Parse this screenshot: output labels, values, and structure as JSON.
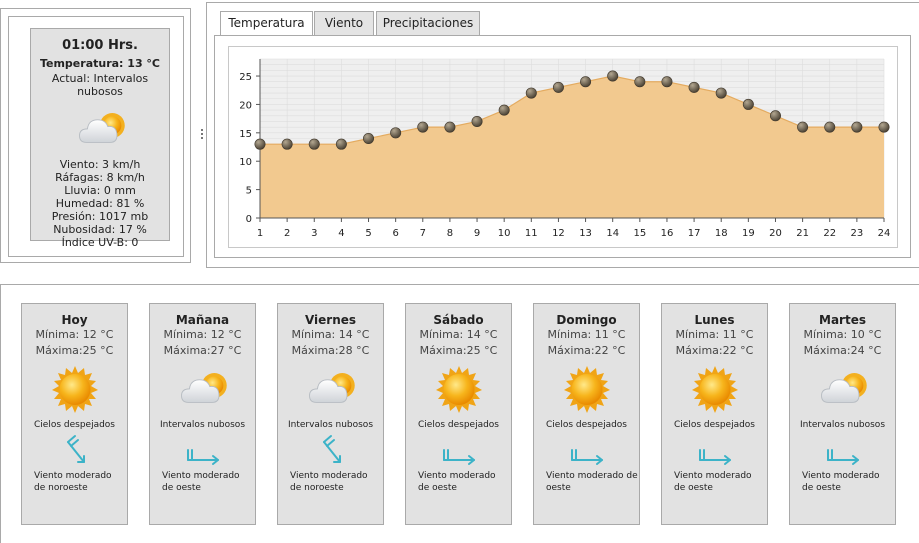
{
  "current": {
    "time": "01:00 Hrs.",
    "temp_label": "Temperatura:",
    "temp_value": "13 °C",
    "actual_label": "Actual:",
    "actual_value": "Intervalos nubosos",
    "icon": "partly-cloudy-icon",
    "details": [
      {
        "label": "Viento:",
        "value": "3 km/h"
      },
      {
        "label": "Ráfagas:",
        "value": "8 km/h"
      },
      {
        "label": "Lluvia:",
        "value": "0 mm"
      },
      {
        "label": "Humedad:",
        "value": "81 %"
      },
      {
        "label": "Presión:",
        "value": "1017 mb"
      },
      {
        "label": "Nubosidad:",
        "value": "17 %"
      },
      {
        "label": "Índice UV-B:",
        "value": "0"
      }
    ]
  },
  "tabs": [
    {
      "label": "Temperatura",
      "active": true
    },
    {
      "label": "Viento",
      "active": false
    },
    {
      "label": "Precipitaciones",
      "active": false
    }
  ],
  "chart_data": {
    "type": "area",
    "x": [
      1,
      2,
      3,
      4,
      5,
      6,
      7,
      8,
      9,
      10,
      11,
      12,
      13,
      14,
      15,
      16,
      17,
      18,
      19,
      20,
      21,
      22,
      23,
      24
    ],
    "series": [
      {
        "values": [
          13,
          13,
          13,
          13,
          14,
          15,
          16,
          16,
          17,
          19,
          22,
          23,
          24,
          25,
          24,
          24,
          23,
          22,
          20,
          18,
          16,
          16,
          16,
          16
        ]
      }
    ],
    "y_ticks": [
      0,
      5,
      10,
      15,
      20,
      25
    ],
    "ylim": [
      0,
      28
    ],
    "xlim": [
      1,
      24
    ],
    "grid": true,
    "fill_color": "#f2c98f",
    "line_color": "#e4ab60",
    "marker_color": "#6d6150"
  },
  "days": [
    {
      "name": "Hoy",
      "min_label": "Mínima:",
      "min": "12 °C",
      "max_label": "Máxima:",
      "max": "25 °C",
      "icon": "sun-icon",
      "sky": "Cielos despejados",
      "wind_icon": "wind-northwest-icon",
      "wind": [
        "Viento moderado",
        "de noroeste"
      ]
    },
    {
      "name": "Mañana",
      "min_label": "Mínima:",
      "min": "12 °C",
      "max_label": "Máxima:",
      "max": "27 °C",
      "icon": "partly-cloudy-icon",
      "sky": "Intervalos nubosos",
      "wind_icon": "wind-west-icon",
      "wind": [
        "Viento moderado",
        "de oeste"
      ]
    },
    {
      "name": "Viernes",
      "min_label": "Mínima:",
      "min": "14 °C",
      "max_label": "Máxima:",
      "max": "28 °C",
      "icon": "partly-cloudy-icon",
      "sky": "Intervalos nubosos",
      "wind_icon": "wind-northwest-icon",
      "wind": [
        "Viento moderado",
        "de noroeste"
      ]
    },
    {
      "name": "Sábado",
      "min_label": "Mínima:",
      "min": "14 °C",
      "max_label": "Máxima:",
      "max": "25 °C",
      "icon": "sun-icon",
      "sky": "Cielos despejados",
      "wind_icon": "wind-west-icon",
      "wind": [
        "Viento moderado",
        "de oeste"
      ]
    },
    {
      "name": "Domingo",
      "min_label": "Mínima:",
      "min": "11 °C",
      "max_label": "Máxima:",
      "max": "22 °C",
      "icon": "sun-icon",
      "sky": "Cielos despejados",
      "wind_icon": "wind-west-icon",
      "wind": [
        "Viento moderado de",
        "oeste"
      ]
    },
    {
      "name": "Lunes",
      "min_label": "Mínima:",
      "min": "11 °C",
      "max_label": "Máxima:",
      "max": "22 °C",
      "icon": "sun-icon",
      "sky": "Cielos despejados",
      "wind_icon": "wind-west-icon",
      "wind": [
        "Viento moderado",
        "de oeste"
      ]
    },
    {
      "name": "Martes",
      "min_label": "Mínima:",
      "min": "10 °C",
      "max_label": "Máxima:",
      "max": "24 °C",
      "icon": "partly-cloudy-icon",
      "sky": "Intervalos nubosos",
      "wind_icon": "wind-west-icon",
      "wind": [
        "Viento moderado",
        "de oeste"
      ]
    }
  ]
}
